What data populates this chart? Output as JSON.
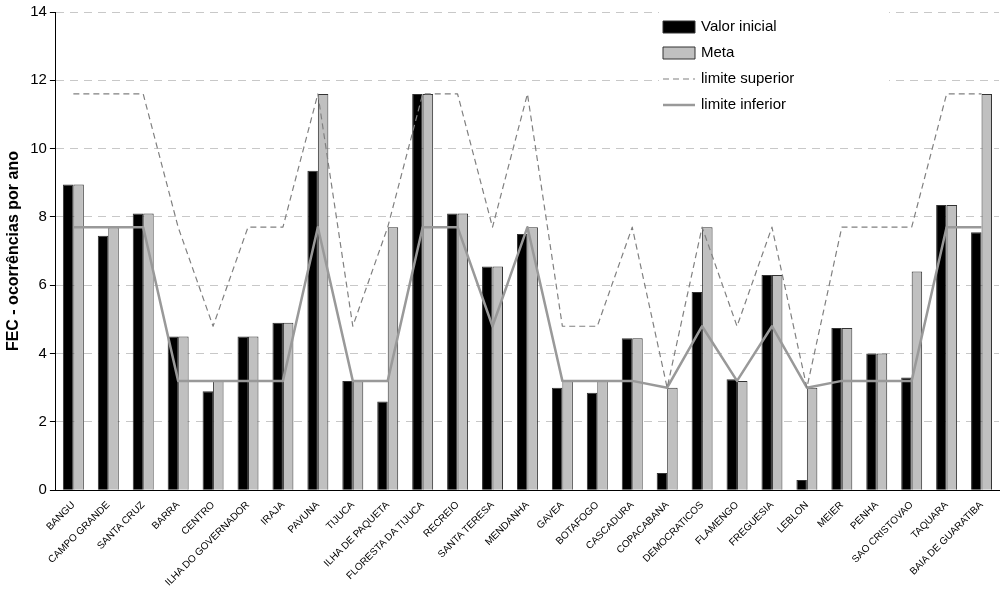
{
  "chart_data": {
    "type": "bar",
    "ylabel": "FEC - ocorrências por ano",
    "categories": [
      "BANGU",
      "CAMPO GRANDE",
      "SANTA CRUZ",
      "BARRA",
      "CENTRO",
      "ILHA DO GOVERNADOR",
      "IRAJA",
      "PAVUNA",
      "TIJUCA",
      "ILHA DE PAQUETA",
      "FLORESTA DA TIJUCA",
      "RECREIO",
      "SANTA TERESA",
      "MENDANHA",
      "GAVEA",
      "BOTAFOGO",
      "CASCADURA",
      "COPACABANA",
      "DEMOCRATICOS",
      "FLAMENGO",
      "FREGUESIA",
      "LEBLON",
      "MEIER",
      "PENHA",
      "SAO CRISTOVAO",
      "TAQUARA",
      "BAIA DE GUARATIBA"
    ],
    "series": [
      {
        "name": "Valor inicial",
        "color": "#000000",
        "values": [
          8.95,
          7.45,
          8.1,
          4.5,
          2.9,
          4.5,
          4.9,
          9.35,
          3.2,
          2.6,
          11.6,
          8.1,
          6.55,
          7.5,
          3.0,
          2.85,
          4.45,
          0.5,
          5.8,
          3.25,
          6.3,
          0.3,
          4.75,
          4.0,
          3.3,
          8.35,
          7.55
        ]
      },
      {
        "name": "Meta",
        "color": "#c0c0c0",
        "values": [
          8.95,
          7.7,
          8.1,
          4.5,
          3.2,
          4.5,
          4.9,
          11.6,
          3.2,
          7.7,
          11.6,
          8.1,
          6.55,
          7.7,
          3.2,
          3.2,
          4.45,
          3.0,
          7.7,
          3.2,
          6.3,
          3.0,
          4.75,
          4.0,
          6.4,
          8.35,
          11.6
        ]
      },
      {
        "name": "limite superior",
        "type": "line",
        "line_style": "dashed",
        "color": "#808080",
        "values": [
          11.6,
          11.6,
          11.6,
          7.7,
          4.8,
          7.7,
          7.7,
          11.6,
          4.8,
          7.7,
          11.6,
          11.6,
          7.7,
          11.6,
          4.8,
          4.8,
          7.7,
          3.0,
          7.7,
          4.8,
          7.7,
          3.0,
          7.7,
          7.7,
          7.7,
          11.6,
          11.6
        ]
      },
      {
        "name": "limite inferior",
        "type": "line",
        "line_style": "solid",
        "color": "#999999",
        "values": [
          7.7,
          7.7,
          7.7,
          3.2,
          3.2,
          3.2,
          3.2,
          7.7,
          3.2,
          3.2,
          7.7,
          7.7,
          4.8,
          7.7,
          3.2,
          3.2,
          3.2,
          3.0,
          4.8,
          3.2,
          4.8,
          3.0,
          3.2,
          3.2,
          3.2,
          7.7,
          7.7
        ]
      }
    ],
    "ylim": [
      0,
      14
    ],
    "yticks": [
      0,
      2,
      4,
      6,
      8,
      10,
      12,
      14
    ],
    "grid": "y",
    "legend": "top right",
    "marker": "none"
  }
}
